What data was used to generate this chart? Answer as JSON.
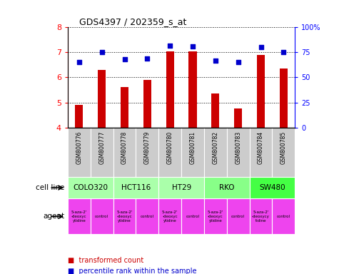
{
  "title": "GDS4397 / 202359_s_at",
  "samples": [
    "GSM800776",
    "GSM800777",
    "GSM800778",
    "GSM800779",
    "GSM800780",
    "GSM800781",
    "GSM800782",
    "GSM800783",
    "GSM800784",
    "GSM800785"
  ],
  "transformed_counts": [
    4.9,
    6.3,
    5.6,
    5.9,
    7.05,
    7.05,
    5.35,
    4.75,
    6.9,
    6.35
  ],
  "percentile_ranks": [
    65,
    75,
    68,
    69,
    82,
    81,
    67,
    65,
    80,
    75
  ],
  "ylim_left": [
    4,
    8
  ],
  "ylim_right": [
    0,
    100
  ],
  "yticks_left": [
    4,
    5,
    6,
    7,
    8
  ],
  "yticks_right": [
    0,
    25,
    50,
    75,
    100
  ],
  "ytick_labels_right": [
    "0",
    "25",
    "50",
    "75",
    "100%"
  ],
  "bar_color": "#cc0000",
  "dot_color": "#0000cc",
  "cell_line_spans": [
    {
      "name": "COLO320",
      "start": 0,
      "end": 2,
      "color": "#aaffaa"
    },
    {
      "name": "HCT116",
      "start": 2,
      "end": 4,
      "color": "#aaffaa"
    },
    {
      "name": "HT29",
      "start": 4,
      "end": 6,
      "color": "#aaffaa"
    },
    {
      "name": "RKO",
      "start": 6,
      "end": 8,
      "color": "#88ff88"
    },
    {
      "name": "SW480",
      "start": 8,
      "end": 10,
      "color": "#44ff44"
    }
  ],
  "agent_texts": [
    "5-aza-2'\n-deoxyc\nytidine",
    "control",
    "5-aza-2'\n-deoxyc\nytidine",
    "control",
    "5-aza-2'\n-deoxyc\nytidine",
    "control",
    "5-aza-2'\n-deoxyc\nytidine",
    "control",
    "5-aza-2'\n-deoxycy\ntidine",
    "control"
  ],
  "agent_color": "#ee44ee",
  "tick_bg_color": "#cccccc",
  "legend_bar_label": "transformed count",
  "legend_dot_label": "percentile rank within the sample",
  "xlabel_cell_line": "cell line",
  "xlabel_agent": "agent"
}
